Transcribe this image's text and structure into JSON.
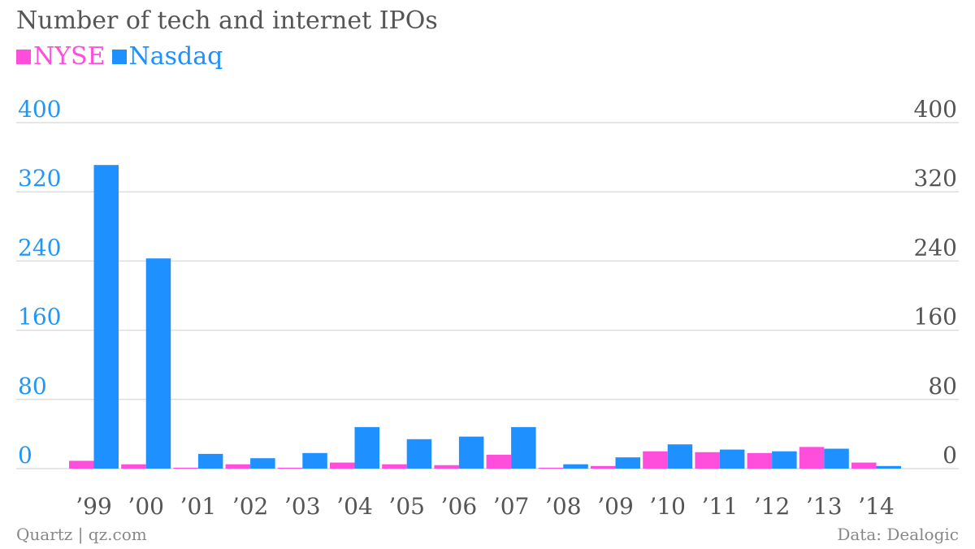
{
  "title": "Number of tech and internet IPOs",
  "legend": [
    {
      "name": "NYSE",
      "color": "#ff4ddc"
    },
    {
      "name": "Nasdaq",
      "color": "#1e90ff"
    }
  ],
  "footer": {
    "source_left": "Quartz | qz.com",
    "source_right": "Data: Dealogic"
  },
  "colors": {
    "left_axis": "#2196f3",
    "right_axis": "#555555",
    "grid": "#dddddd"
  },
  "chart_data": {
    "type": "bar",
    "title": "Number of tech and internet IPOs",
    "categories": [
      "’99",
      "’00",
      "’01",
      "’02",
      "’03",
      "’04",
      "’05",
      "’06",
      "’07",
      "’08",
      "’09",
      "’10",
      "’11",
      "’12",
      "’13",
      "’14"
    ],
    "series": [
      {
        "name": "NYSE",
        "color": "#ff4ddc",
        "values": [
          9,
          5,
          1,
          5,
          1,
          7,
          5,
          4,
          16,
          1,
          3,
          20,
          19,
          18,
          25,
          7
        ]
      },
      {
        "name": "Nasdaq",
        "color": "#1e90ff",
        "values": [
          351,
          243,
          17,
          12,
          18,
          48,
          34,
          37,
          48,
          5,
          13,
          28,
          22,
          20,
          23,
          3
        ]
      }
    ],
    "ylim": [
      0,
      400
    ],
    "yticks": [
      0,
      80,
      160,
      240,
      320,
      400
    ],
    "y_axes": "left and right",
    "grid": true,
    "legend_position": "top-left"
  }
}
